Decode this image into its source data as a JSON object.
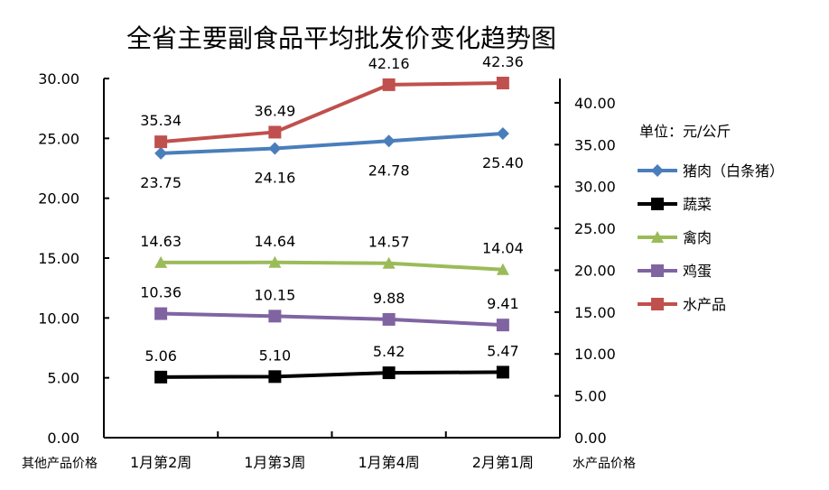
{
  "chart_data": {
    "type": "line",
    "title": "全省主要副食品平均批发价变化趋势图",
    "categories": [
      "1月第2周",
      "1月第3周",
      "1月第4周",
      "2月第1周"
    ],
    "left_axis": {
      "label": "其他产品价格",
      "ylim": [
        0,
        30
      ],
      "ticks": [
        "0.00",
        "5.00",
        "10.00",
        "15.00",
        "20.00",
        "25.00",
        "30.00"
      ]
    },
    "right_axis": {
      "label": "水产品价格",
      "ylim": [
        0,
        42.9
      ],
      "ticks": [
        "0.00",
        "5.00",
        "10.00",
        "15.00",
        "20.00",
        "25.00",
        "30.00",
        "35.00",
        "40.00"
      ]
    },
    "unit": "单位：元/公斤",
    "legend_position": "right",
    "series": [
      {
        "name": "猪肉（白条猪）",
        "axis": "left",
        "values": [
          23.75,
          24.16,
          24.78,
          25.4
        ],
        "labels": [
          "23.75",
          "24.16",
          "24.78",
          "25.40"
        ],
        "color": "#4a7ebb",
        "marker": "diamond",
        "label_pos": "below"
      },
      {
        "name": "蔬菜",
        "axis": "left",
        "values": [
          5.06,
          5.1,
          5.42,
          5.47
        ],
        "labels": [
          "5.06",
          "5.10",
          "5.42",
          "5.47"
        ],
        "color": "#000000",
        "marker": "square",
        "label_pos": "above"
      },
      {
        "name": "禽肉",
        "axis": "left",
        "values": [
          14.63,
          14.64,
          14.57,
          14.04
        ],
        "labels": [
          "14.63",
          "14.64",
          "14.57",
          "14.04"
        ],
        "color": "#9bbb59",
        "marker": "triangle",
        "label_pos": "above"
      },
      {
        "name": "鸡蛋",
        "axis": "left",
        "values": [
          10.36,
          10.15,
          9.88,
          9.41
        ],
        "labels": [
          "10.36",
          "10.15",
          "9.88",
          "9.41"
        ],
        "color": "#8064a2",
        "marker": "square",
        "label_pos": "above"
      },
      {
        "name": "水产品",
        "axis": "right",
        "values": [
          35.34,
          36.49,
          42.16,
          42.36
        ],
        "labels": [
          "35.34",
          "36.49",
          "42.16",
          "42.36"
        ],
        "color": "#c0504d",
        "marker": "square",
        "label_pos": "above"
      }
    ]
  }
}
